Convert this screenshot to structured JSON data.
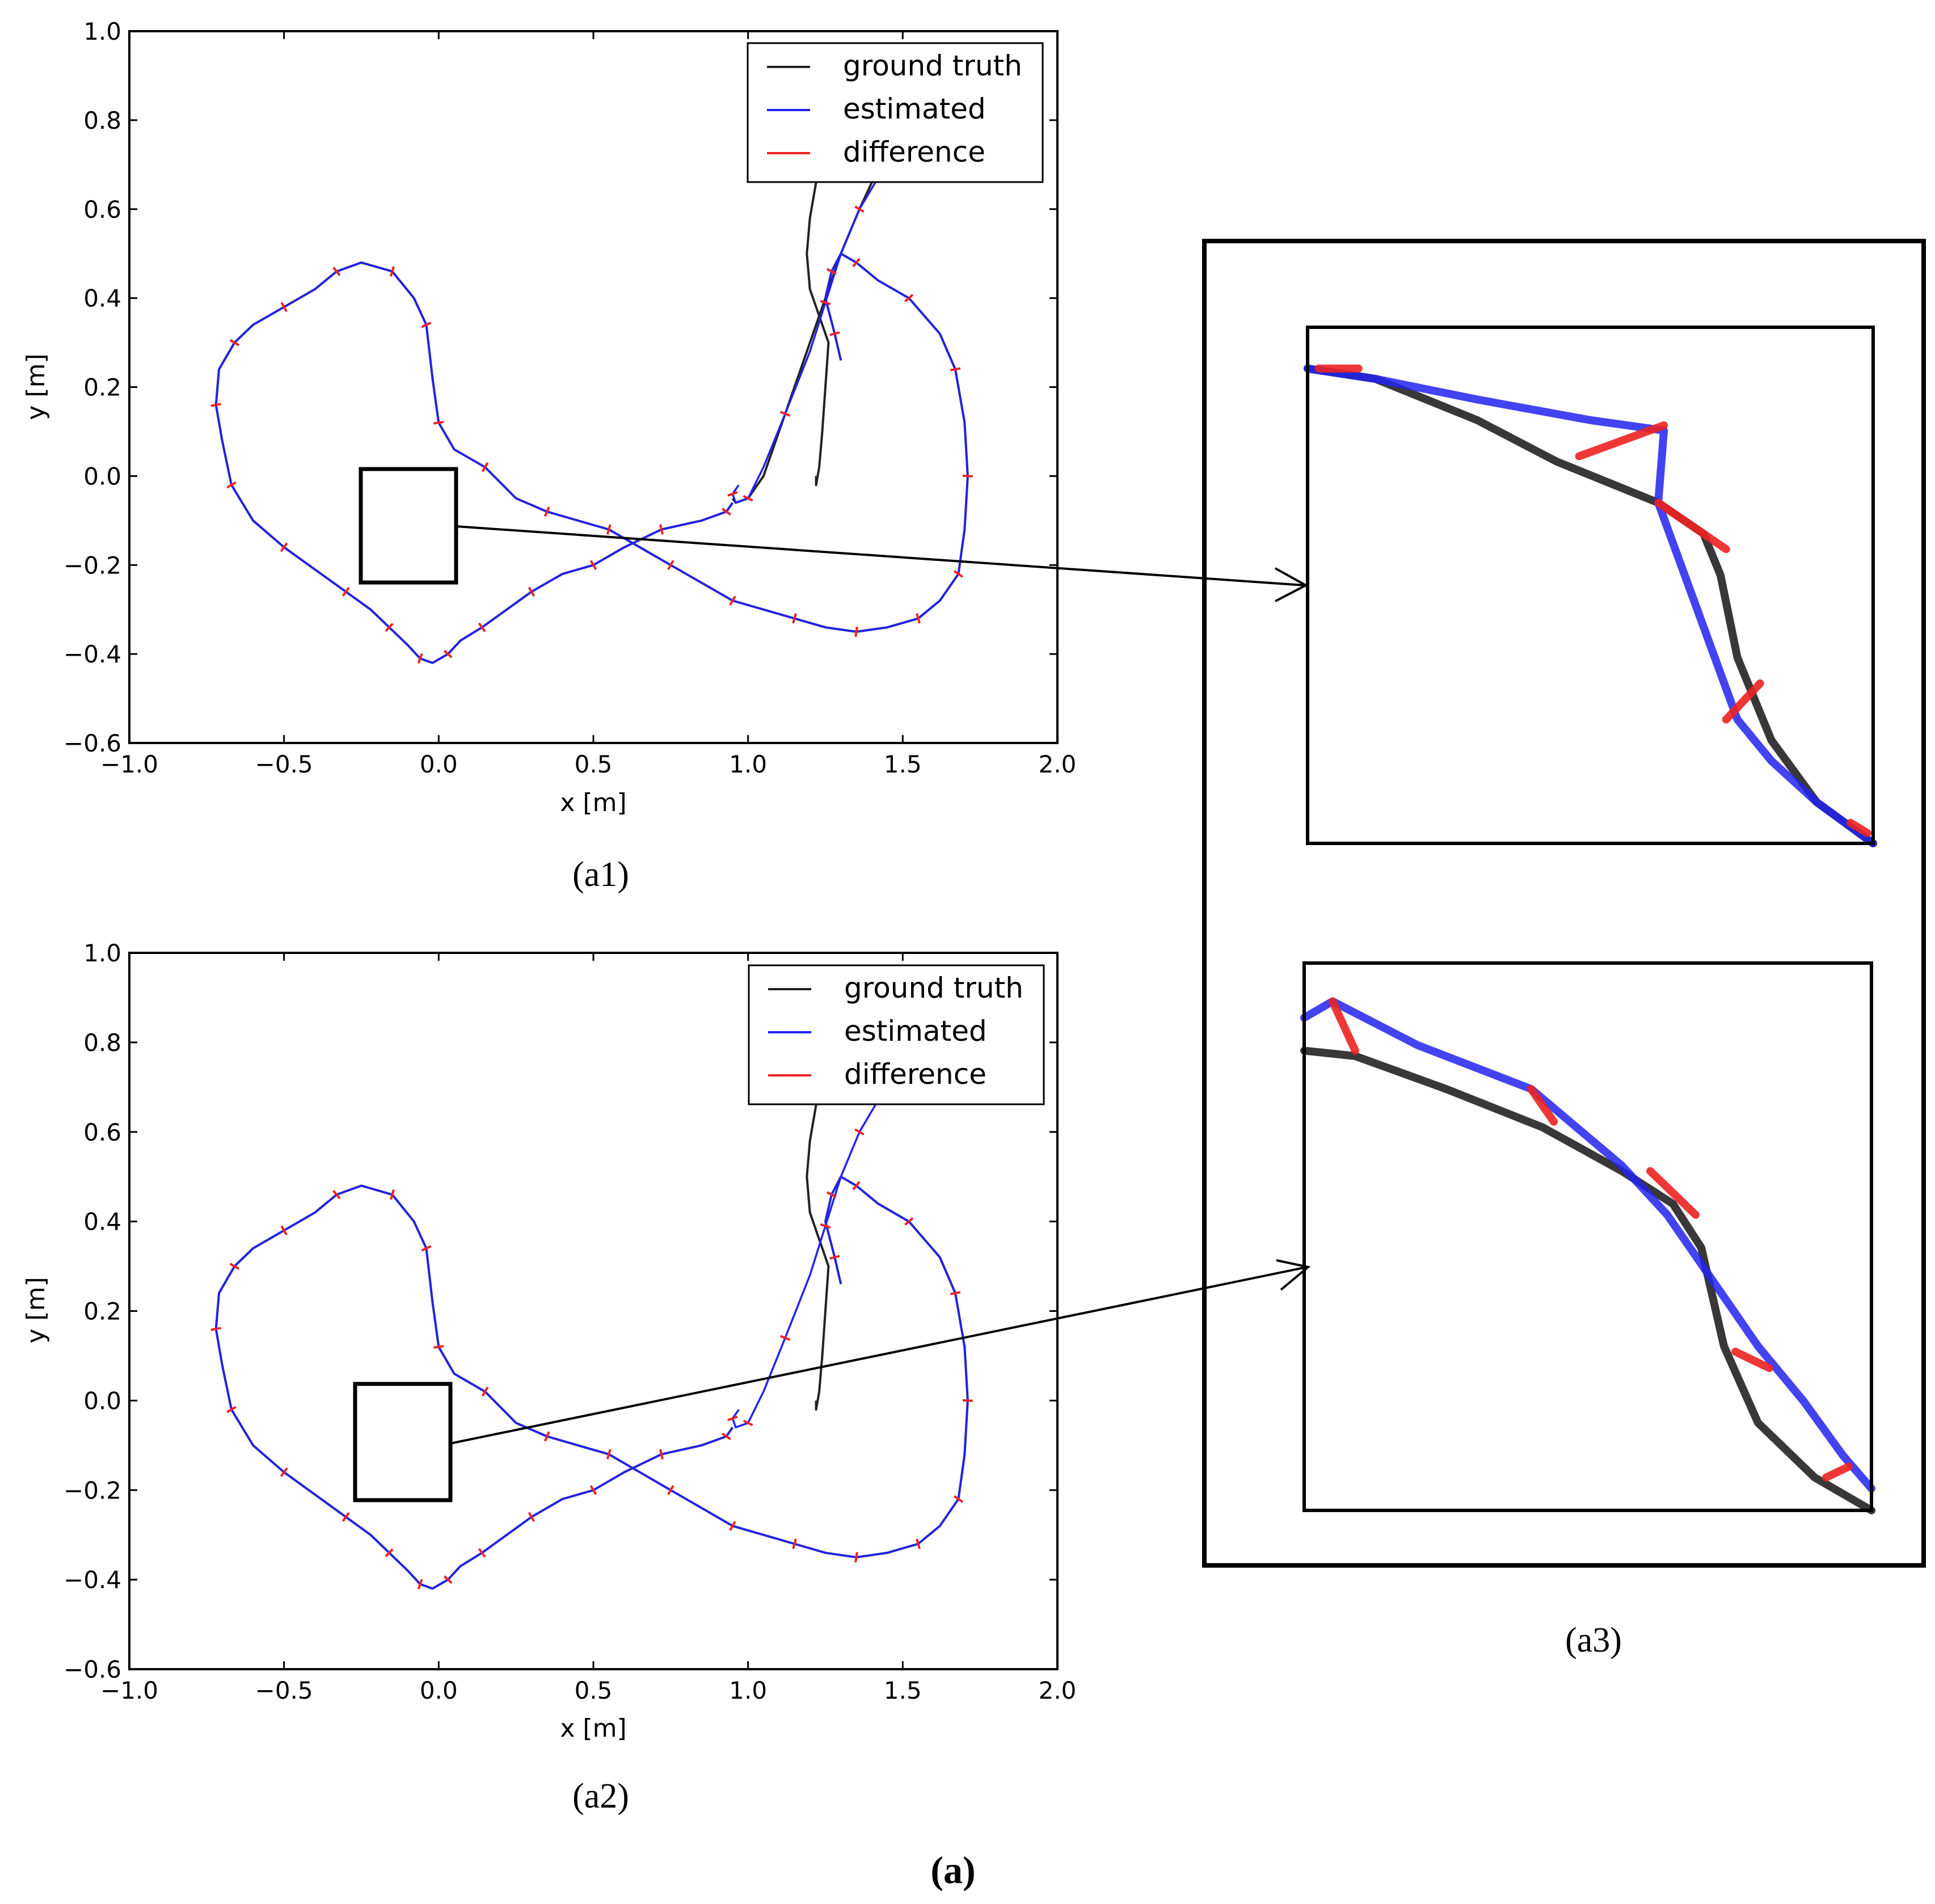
{
  "figure_label": "(a)",
  "colors": {
    "ground_truth": "#222222",
    "estimated": "#2222ee",
    "difference": "#ee2222",
    "axis": "#000000"
  },
  "chart_data": [
    {
      "id": "a1",
      "type": "line",
      "panel_label": "(a1)",
      "xlabel": "x [m]",
      "ylabel": "y [m]",
      "xlim": [
        -1.0,
        2.0
      ],
      "ylim": [
        -0.6,
        1.0
      ],
      "xticks": [
        -1.0,
        -0.5,
        0.0,
        0.5,
        1.0,
        1.5,
        2.0
      ],
      "xtick_labels": [
        "−1.0",
        "−0.5",
        "0.0",
        "0.5",
        "1.0",
        "1.5",
        "2.0"
      ],
      "yticks": [
        -0.6,
        -0.4,
        -0.2,
        0.0,
        0.2,
        0.4,
        0.6,
        0.8,
        1.0
      ],
      "ytick_labels": [
        "−0.6",
        "−0.4",
        "−0.2",
        "0.0",
        "0.2",
        "0.4",
        "0.6",
        "0.8",
        "1.0"
      ],
      "legend": [
        "ground truth",
        "estimated",
        "difference"
      ],
      "legend_loc": "top-right",
      "zoom_box": {
        "x": [
          -0.24,
          0.06
        ],
        "y": [
          -0.24,
          0.02
        ]
      },
      "series": [
        {
          "name": "ground truth",
          "x": [
            1.22,
            1.2,
            1.19,
            1.2,
            1.23,
            1.26,
            1.25,
            1.24,
            1.23,
            1.22,
            1.22
          ],
          "y": [
            0.66,
            0.58,
            0.5,
            0.42,
            0.36,
            0.3,
            0.2,
            0.1,
            0.02,
            -0.02,
            0.0
          ]
        },
        {
          "name": "ground truth",
          "x": [
            1.4,
            1.36,
            1.3,
            1.25,
            1.19,
            1.12,
            1.05,
            1.0,
            0.96,
            0.95
          ],
          "y": [
            0.66,
            0.6,
            0.5,
            0.4,
            0.28,
            0.14,
            0.0,
            -0.05,
            -0.06,
            -0.05
          ],
          "split": 2
        },
        {
          "name": "ground truth",
          "x": [
            0.95,
            0.93,
            0.85,
            0.72,
            0.6,
            0.5,
            0.4,
            0.3,
            0.22,
            0.14,
            0.07,
            0.03,
            -0.02,
            -0.06,
            -0.1,
            -0.16,
            -0.22,
            -0.3,
            -0.4,
            -0.5,
            -0.6,
            -0.67,
            -0.7,
            -0.72,
            -0.71,
            -0.66,
            -0.6,
            -0.5,
            -0.4,
            -0.33,
            -0.25,
            -0.15,
            -0.08,
            -0.04,
            -0.02,
            0.0,
            0.05,
            0.15,
            0.25,
            0.35,
            0.45,
            0.55,
            0.65,
            0.75,
            0.85,
            0.95,
            1.05,
            1.15,
            1.25,
            1.35,
            1.45,
            1.55,
            1.62,
            1.68,
            1.7,
            1.71,
            1.7,
            1.67,
            1.62,
            1.52,
            1.42,
            1.35,
            1.3,
            1.27,
            1.25,
            1.28,
            1.3
          ],
          "y": [
            -0.06,
            -0.08,
            -0.1,
            -0.12,
            -0.16,
            -0.2,
            -0.22,
            -0.26,
            -0.3,
            -0.34,
            -0.37,
            -0.4,
            -0.42,
            -0.41,
            -0.38,
            -0.34,
            -0.3,
            -0.26,
            -0.21,
            -0.16,
            -0.1,
            -0.02,
            0.08,
            0.16,
            0.24,
            0.3,
            0.34,
            0.38,
            0.42,
            0.46,
            0.48,
            0.46,
            0.4,
            0.34,
            0.22,
            0.12,
            0.06,
            0.02,
            -0.05,
            -0.08,
            -0.1,
            -0.12,
            -0.16,
            -0.2,
            -0.24,
            -0.28,
            -0.3,
            -0.32,
            -0.34,
            -0.35,
            -0.34,
            -0.32,
            -0.28,
            -0.22,
            -0.12,
            0.0,
            0.12,
            0.24,
            0.32,
            0.4,
            0.44,
            0.48,
            0.5,
            0.46,
            0.4,
            0.32,
            0.26
          ],
          "split": 3
        },
        {
          "name": "estimated",
          "x": [
            1.42,
            1.36,
            1.3,
            1.25,
            1.2,
            1.12,
            1.05,
            1.0,
            0.96,
            0.95,
            0.97
          ],
          "y": [
            0.67,
            0.6,
            0.5,
            0.39,
            0.28,
            0.14,
            0.02,
            -0.05,
            -0.06,
            -0.04,
            -0.02
          ]
        },
        {
          "name": "estimated",
          "x": [
            0.95,
            0.93,
            0.85,
            0.72,
            0.6,
            0.5,
            0.4,
            0.3,
            0.22,
            0.14,
            0.07,
            0.03,
            -0.02,
            -0.06,
            -0.1,
            -0.16,
            -0.22,
            -0.3,
            -0.4,
            -0.5,
            -0.6,
            -0.67,
            -0.7,
            -0.72,
            -0.71,
            -0.66,
            -0.6,
            -0.5,
            -0.4,
            -0.33,
            -0.25,
            -0.15,
            -0.08,
            -0.04,
            -0.02,
            0.0,
            0.05,
            0.15,
            0.25,
            0.35,
            0.45,
            0.55,
            0.65,
            0.75,
            0.85,
            0.95,
            1.05,
            1.15,
            1.25,
            1.35,
            1.45,
            1.55,
            1.62,
            1.68,
            1.7,
            1.71,
            1.7,
            1.67,
            1.62,
            1.52,
            1.42,
            1.35,
            1.3,
            1.27,
            1.25,
            1.28,
            1.3
          ],
          "y": [
            -0.06,
            -0.08,
            -0.1,
            -0.12,
            -0.16,
            -0.2,
            -0.22,
            -0.26,
            -0.3,
            -0.34,
            -0.37,
            -0.4,
            -0.42,
            -0.41,
            -0.38,
            -0.34,
            -0.3,
            -0.26,
            -0.21,
            -0.16,
            -0.1,
            -0.02,
            0.08,
            0.16,
            0.24,
            0.3,
            0.34,
            0.38,
            0.42,
            0.46,
            0.48,
            0.46,
            0.4,
            0.34,
            0.22,
            0.12,
            0.06,
            0.02,
            -0.05,
            -0.08,
            -0.1,
            -0.12,
            -0.16,
            -0.2,
            -0.24,
            -0.28,
            -0.3,
            -0.32,
            -0.34,
            -0.35,
            -0.34,
            -0.32,
            -0.28,
            -0.22,
            -0.12,
            0.0,
            0.12,
            0.24,
            0.32,
            0.4,
            0.44,
            0.48,
            0.5,
            0.46,
            0.4,
            0.32,
            0.26
          ],
          "split": 1
        }
      ]
    },
    {
      "id": "a2",
      "type": "line",
      "panel_label": "(a2)",
      "xlabel": "x [m]",
      "ylabel": "y [m]",
      "xlim": [
        -1.0,
        2.0
      ],
      "ylim": [
        -0.6,
        1.0
      ],
      "xticks": [
        -1.0,
        -0.5,
        0.0,
        0.5,
        1.0,
        1.5,
        2.0
      ],
      "xtick_labels": [
        "−1.0",
        "−0.5",
        "0.0",
        "0.5",
        "1.0",
        "1.5",
        "2.0"
      ],
      "yticks": [
        -0.6,
        -0.4,
        -0.2,
        0.0,
        0.2,
        0.4,
        0.6,
        0.8,
        1.0
      ],
      "ytick_labels": [
        "−0.6",
        "−0.4",
        "−0.2",
        "0.0",
        "0.2",
        "0.4",
        "0.6",
        "0.8",
        "1.0"
      ],
      "legend": [
        "ground truth",
        "estimated",
        "difference"
      ],
      "legend_loc": "top-right",
      "zoom_box": {
        "x": [
          -0.26,
          0.05
        ],
        "y": [
          -0.22,
          0.04
        ]
      },
      "series": [
        {
          "name": "ground truth",
          "x": [
            1.22,
            1.2,
            1.19,
            1.2,
            1.23,
            1.26,
            1.25,
            1.24,
            1.23,
            1.22,
            1.22
          ],
          "y": [
            0.66,
            0.58,
            0.5,
            0.42,
            0.36,
            0.3,
            0.2,
            0.1,
            0.02,
            -0.02,
            0.0
          ]
        },
        {
          "name": "ground truth",
          "x": [
            0.95,
            0.93,
            0.85,
            0.72,
            0.6,
            0.5,
            0.4,
            0.3,
            0.22,
            0.14,
            0.07,
            0.03,
            -0.02,
            -0.06,
            -0.1,
            -0.16,
            -0.22,
            -0.3,
            -0.4,
            -0.5,
            -0.6,
            -0.67,
            -0.7,
            -0.72,
            -0.71,
            -0.66,
            -0.6,
            -0.5,
            -0.4,
            -0.33,
            -0.25,
            -0.15,
            -0.08,
            -0.04,
            -0.02,
            0.0,
            0.05,
            0.15,
            0.25,
            0.35,
            0.45,
            0.55,
            0.65,
            0.75,
            0.85,
            0.95,
            1.05,
            1.15,
            1.25,
            1.35,
            1.45,
            1.55,
            1.62,
            1.68,
            1.7,
            1.71,
            1.7,
            1.67,
            1.62,
            1.52,
            1.42,
            1.35,
            1.3,
            1.27,
            1.25,
            1.28,
            1.3
          ],
          "y": [
            -0.06,
            -0.08,
            -0.1,
            -0.12,
            -0.16,
            -0.2,
            -0.22,
            -0.26,
            -0.3,
            -0.34,
            -0.37,
            -0.4,
            -0.42,
            -0.41,
            -0.38,
            -0.34,
            -0.3,
            -0.26,
            -0.21,
            -0.16,
            -0.1,
            -0.02,
            0.08,
            0.16,
            0.24,
            0.3,
            0.34,
            0.38,
            0.42,
            0.46,
            0.48,
            0.46,
            0.4,
            0.34,
            0.22,
            0.12,
            0.06,
            0.02,
            -0.05,
            -0.08,
            -0.1,
            -0.12,
            -0.16,
            -0.2,
            -0.24,
            -0.28,
            -0.3,
            -0.32,
            -0.34,
            -0.35,
            -0.34,
            -0.32,
            -0.28,
            -0.22,
            -0.12,
            0.0,
            0.12,
            0.24,
            0.32,
            0.4,
            0.44,
            0.48,
            0.5,
            0.46,
            0.4,
            0.32,
            0.26
          ],
          "split": 3
        },
        {
          "name": "estimated",
          "x": [
            1.42,
            1.36,
            1.3,
            1.25,
            1.2,
            1.12,
            1.05,
            1.0,
            0.96,
            0.95,
            0.97
          ],
          "y": [
            0.67,
            0.6,
            0.5,
            0.39,
            0.28,
            0.14,
            0.02,
            -0.05,
            -0.06,
            -0.04,
            -0.02
          ]
        },
        {
          "name": "estimated",
          "x": [
            0.95,
            0.93,
            0.85,
            0.72,
            0.6,
            0.5,
            0.4,
            0.3,
            0.22,
            0.14,
            0.07,
            0.03,
            -0.02,
            -0.06,
            -0.1,
            -0.16,
            -0.22,
            -0.3,
            -0.4,
            -0.5,
            -0.6,
            -0.67,
            -0.7,
            -0.72,
            -0.71,
            -0.66,
            -0.6,
            -0.5,
            -0.4,
            -0.33,
            -0.25,
            -0.15,
            -0.08,
            -0.04,
            -0.02,
            0.0,
            0.05,
            0.15,
            0.25,
            0.35,
            0.45,
            0.55,
            0.65,
            0.75,
            0.85,
            0.95,
            1.05,
            1.15,
            1.25,
            1.35,
            1.45,
            1.55,
            1.62,
            1.68,
            1.7,
            1.71,
            1.7,
            1.67,
            1.62,
            1.52,
            1.42,
            1.35,
            1.3,
            1.27,
            1.25,
            1.28,
            1.3
          ],
          "y": [
            -0.06,
            -0.08,
            -0.1,
            -0.12,
            -0.16,
            -0.2,
            -0.22,
            -0.26,
            -0.3,
            -0.34,
            -0.37,
            -0.4,
            -0.42,
            -0.41,
            -0.38,
            -0.34,
            -0.3,
            -0.26,
            -0.21,
            -0.16,
            -0.1,
            -0.02,
            0.08,
            0.16,
            0.24,
            0.3,
            0.34,
            0.38,
            0.42,
            0.46,
            0.48,
            0.46,
            0.4,
            0.34,
            0.22,
            0.12,
            0.06,
            0.02,
            -0.05,
            -0.08,
            -0.1,
            -0.12,
            -0.16,
            -0.2,
            -0.24,
            -0.28,
            -0.3,
            -0.32,
            -0.34,
            -0.35,
            -0.34,
            -0.32,
            -0.28,
            -0.22,
            -0.12,
            0.0,
            0.12,
            0.24,
            0.32,
            0.4,
            0.44,
            0.48,
            0.5,
            0.46,
            0.4,
            0.32,
            0.26
          ],
          "split": 1
        }
      ]
    },
    {
      "id": "a3",
      "type": "line",
      "panel_label": "(a3)",
      "insets": [
        {
          "source": "a1",
          "ground_truth": {
            "x": [
              0.0,
              0.12,
              0.3,
              0.44,
              0.62,
              0.7,
              0.73,
              0.76,
              0.82,
              0.9,
              1.0
            ],
            "y": [
              0.92,
              0.9,
              0.82,
              0.74,
              0.66,
              0.6,
              0.52,
              0.36,
              0.2,
              0.08,
              0.0
            ]
          },
          "estimated": {
            "x": [
              0.0,
              0.12,
              0.3,
              0.5,
              0.63,
              0.62,
              0.66,
              0.72,
              0.76,
              0.82,
              0.9,
              1.0
            ],
            "y": [
              0.92,
              0.9,
              0.86,
              0.82,
              0.8,
              0.66,
              0.54,
              0.36,
              0.24,
              0.16,
              0.08,
              0.0
            ]
          },
          "difference": [
            [
              0.02,
              0.09,
              0.92,
              0.92
            ],
            [
              0.48,
              0.63,
              0.75,
              0.81
            ],
            [
              0.62,
              0.74,
              0.66,
              0.57
            ],
            [
              0.74,
              0.8,
              0.24,
              0.31
            ],
            [
              0.96,
              0.99,
              0.04,
              0.02
            ]
          ]
        },
        {
          "source": "a2",
          "ground_truth": {
            "x": [
              0.0,
              0.09,
              0.25,
              0.42,
              0.56,
              0.65,
              0.7,
              0.74,
              0.8,
              0.9,
              1.0
            ],
            "y": [
              0.84,
              0.83,
              0.77,
              0.7,
              0.62,
              0.56,
              0.48,
              0.3,
              0.16,
              0.06,
              0.0
            ]
          },
          "estimated": {
            "x": [
              0.0,
              0.05,
              0.2,
              0.4,
              0.56,
              0.64,
              0.72,
              0.8,
              0.88,
              0.95,
              1.0
            ],
            "y": [
              0.9,
              0.93,
              0.85,
              0.77,
              0.63,
              0.54,
              0.42,
              0.3,
              0.2,
              0.1,
              0.04
            ]
          },
          "difference": [
            [
              0.05,
              0.09,
              0.93,
              0.84
            ],
            [
              0.4,
              0.44,
              0.77,
              0.71
            ],
            [
              0.61,
              0.69,
              0.62,
              0.54
            ],
            [
              0.76,
              0.82,
              0.29,
              0.26
            ],
            [
              0.92,
              0.96,
              0.06,
              0.08
            ]
          ]
        }
      ]
    }
  ]
}
